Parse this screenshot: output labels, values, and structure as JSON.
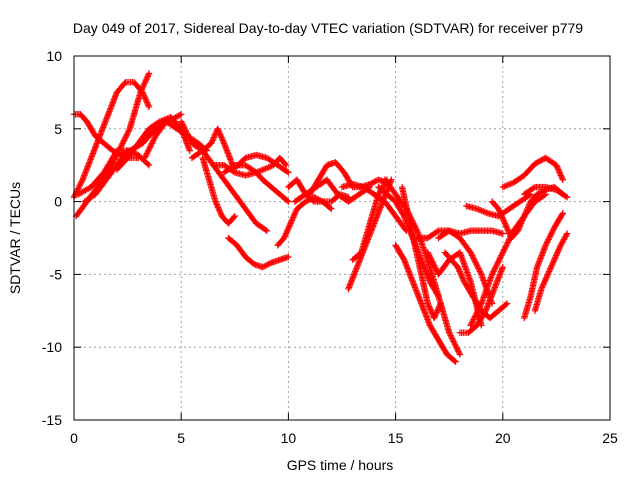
{
  "chart_data": {
    "type": "scatter",
    "title": "Day 049 of 2017, Sidereal Day-to-day VTEC variation (SDTVAR) for receiver p779",
    "xlabel": "GPS time / hours",
    "ylabel": "SDTVAR / TECUs",
    "xlim": [
      0,
      25
    ],
    "ylim": [
      -15,
      10
    ],
    "xticks": [
      0,
      5,
      10,
      15,
      20,
      25
    ],
    "yticks": [
      -15,
      -10,
      -5,
      0,
      5,
      10
    ],
    "grid": true,
    "marker": "+",
    "color": "#ff0000",
    "series": [
      {
        "x": [
          0.0,
          0.3,
          0.6,
          1.0,
          1.4,
          1.8,
          2.2,
          2.6,
          3.0
        ],
        "y": [
          6.0,
          6.0,
          5.5,
          4.5,
          4.0,
          3.5,
          3.2,
          3.0,
          3.0
        ]
      },
      {
        "x": [
          0.0,
          0.4,
          0.8,
          1.2,
          1.6,
          2.0,
          2.4,
          2.8,
          3.2,
          3.5
        ],
        "y": [
          0.3,
          1.5,
          3.0,
          4.5,
          6.0,
          7.5,
          8.2,
          8.2,
          7.5,
          6.5
        ]
      },
      {
        "x": [
          0.1,
          0.6,
          1.1,
          1.6,
          2.1,
          2.6,
          3.1,
          3.5
        ],
        "y": [
          -1.0,
          0.0,
          1.0,
          2.0,
          3.5,
          5.0,
          7.5,
          8.8
        ]
      },
      {
        "x": [
          0.5,
          1.0,
          1.5,
          2.0,
          2.5,
          3.0,
          3.5
        ],
        "y": [
          0.0,
          0.5,
          1.5,
          2.5,
          3.5,
          3.2,
          2.5
        ]
      },
      {
        "x": [
          0.2,
          0.8,
          1.4,
          2.0,
          2.6,
          3.2,
          3.8,
          4.4,
          5.0
        ],
        "y": [
          0.5,
          1.0,
          2.0,
          3.5,
          3.5,
          4.0,
          5.0,
          5.5,
          6.0
        ]
      },
      {
        "x": [
          2.0,
          2.5,
          3.0,
          3.5,
          4.0,
          4.5,
          5.0,
          5.4
        ],
        "y": [
          2.2,
          3.0,
          4.0,
          5.0,
          5.5,
          5.8,
          5.0,
          3.5
        ]
      },
      {
        "x": [
          3.3,
          3.8,
          4.3,
          4.8,
          5.3,
          5.8,
          6.2
        ],
        "y": [
          3.0,
          4.5,
          5.5,
          5.0,
          4.5,
          4.0,
          3.5
        ]
      },
      {
        "x": [
          5.0,
          5.5,
          6.0,
          6.4,
          6.7,
          7.0,
          7.4
        ],
        "y": [
          5.5,
          4.0,
          3.5,
          4.0,
          5.0,
          4.0,
          2.5
        ]
      },
      {
        "x": [
          5.5,
          6.0,
          6.5,
          7.0,
          7.5,
          8.0,
          8.5,
          9.0
        ],
        "y": [
          3.0,
          3.5,
          2.5,
          1.5,
          0.5,
          -0.5,
          -1.5,
          -2.0
        ]
      },
      {
        "x": [
          6.0,
          6.3,
          6.6,
          6.9,
          7.2,
          7.5
        ],
        "y": [
          3.0,
          1.5,
          0.0,
          -1.0,
          -1.5,
          -1.0
        ]
      },
      {
        "x": [
          6.5,
          7.0,
          7.5,
          8.0,
          8.5,
          9.0,
          9.3,
          9.6,
          9.9
        ],
        "y": [
          2.5,
          2.5,
          2.0,
          1.8,
          2.0,
          2.3,
          2.5,
          3.0,
          2.5
        ]
      },
      {
        "x": [
          7.0,
          7.5,
          8.0,
          8.5,
          8.8,
          9.2,
          9.6,
          10.0
        ],
        "y": [
          2.0,
          2.5,
          2.5,
          2.0,
          1.5,
          1.0,
          0.5,
          0.0
        ]
      },
      {
        "x": [
          7.5,
          8.0,
          8.5,
          9.0,
          9.5,
          10.0
        ],
        "y": [
          2.3,
          3.0,
          3.2,
          3.0,
          2.5,
          2.0
        ]
      },
      {
        "x": [
          7.2,
          7.6,
          8.0,
          8.4,
          8.8,
          9.2,
          9.6,
          10.0
        ],
        "y": [
          -2.5,
          -3.0,
          -3.8,
          -4.3,
          -4.5,
          -4.2,
          -4.0,
          -3.8
        ]
      },
      {
        "x": [
          9.5,
          9.8,
          10.1,
          10.4,
          10.8,
          11.2,
          11.6,
          12.0
        ],
        "y": [
          -3.0,
          -2.5,
          -1.5,
          -0.5,
          0.0,
          0.3,
          0.0,
          -0.5
        ]
      },
      {
        "x": [
          10.0,
          10.4,
          10.8,
          11.2,
          11.6,
          12.0,
          12.4,
          12.8
        ],
        "y": [
          1.0,
          1.5,
          0.5,
          0.0,
          0.0,
          0.0,
          0.5,
          0.3
        ]
      },
      {
        "x": [
          10.3,
          10.8,
          11.3,
          11.8,
          12.3,
          12.8,
          13.3,
          13.8
        ],
        "y": [
          0.0,
          0.5,
          1.0,
          1.5,
          0.5,
          0.0,
          0.5,
          1.0
        ]
      },
      {
        "x": [
          11.0,
          11.4,
          11.8,
          12.2,
          12.6,
          13.0,
          13.4,
          13.8,
          14.2,
          14.6
        ],
        "y": [
          0.5,
          1.5,
          2.5,
          2.7,
          2.0,
          1.0,
          1.0,
          1.2,
          1.5,
          1.3
        ]
      },
      {
        "x": [
          12.5,
          13.0,
          13.5,
          14.0,
          14.5,
          15.0,
          15.5
        ],
        "y": [
          1.0,
          1.2,
          1.0,
          0.5,
          0.0,
          -1.0,
          -2.0
        ]
      },
      {
        "x": [
          13.0,
          13.4,
          13.8,
          14.2,
          14.6
        ],
        "y": [
          -4.0,
          -3.5,
          -1.5,
          0.5,
          1.5
        ]
      },
      {
        "x": [
          12.8,
          13.2,
          13.6,
          14.0,
          14.4,
          14.8
        ],
        "y": [
          -6.0,
          -4.5,
          -3.0,
          -1.5,
          0.0,
          1.5
        ]
      },
      {
        "x": [
          14.2,
          14.6,
          15.0,
          15.4,
          15.8,
          16.2,
          16.6,
          17.0
        ],
        "y": [
          1.0,
          0.5,
          0.0,
          -1.0,
          -2.5,
          -4.0,
          -5.5,
          -6.5
        ]
      },
      {
        "x": [
          14.5,
          15.0,
          15.5,
          16.0,
          16.5,
          17.0,
          17.5,
          18.0
        ],
        "y": [
          1.5,
          0.5,
          -0.5,
          -2.0,
          -4.0,
          -6.5,
          -9.0,
          -10.5
        ]
      },
      {
        "x": [
          15.0,
          15.4,
          15.8,
          16.2,
          16.6,
          17.0,
          17.4,
          17.8
        ],
        "y": [
          -3.0,
          -4.0,
          -5.5,
          -7.0,
          -8.5,
          -9.5,
          -10.5,
          -11.0
        ]
      },
      {
        "x": [
          15.3,
          15.6,
          15.9,
          16.2,
          16.5,
          16.8,
          17.1
        ],
        "y": [
          1.0,
          -1.0,
          -3.0,
          -5.0,
          -7.0,
          -8.0,
          -7.0
        ]
      },
      {
        "x": [
          16.0,
          16.5,
          17.0,
          17.5,
          18.0,
          18.5,
          19.0,
          19.5,
          20.0
        ],
        "y": [
          -2.5,
          -2.5,
          -2.0,
          -2.0,
          -2.2,
          -2.0,
          -2.0,
          -2.0,
          -2.2
        ]
      },
      {
        "x": [
          16.5,
          17.0,
          17.5,
          18.0,
          18.5,
          19.0
        ],
        "y": [
          -3.5,
          -5.0,
          -4.0,
          -3.5,
          -5.5,
          -8.5
        ]
      },
      {
        "x": [
          17.0,
          17.5,
          18.0,
          18.5,
          19.0,
          19.5
        ],
        "y": [
          -2.5,
          -2.0,
          -2.5,
          -3.5,
          -5.0,
          -7.0
        ]
      },
      {
        "x": [
          17.3,
          17.6,
          17.9,
          18.2,
          18.6,
          19.0,
          19.4,
          19.8,
          20.2
        ],
        "y": [
          -3.5,
          -4.0,
          -4.5,
          -5.5,
          -6.5,
          -7.5,
          -8.0,
          -7.5,
          -7.0
        ]
      },
      {
        "x": [
          18.0,
          18.4,
          18.8,
          19.2,
          19.6,
          20.0
        ],
        "y": [
          -9.0,
          -9.0,
          -8.5,
          -7.5,
          -6.0,
          -4.5
        ]
      },
      {
        "x": [
          18.3,
          18.8,
          19.3,
          19.8,
          20.3,
          20.8,
          21.3
        ],
        "y": [
          -0.3,
          -0.5,
          -0.8,
          -1.0,
          -0.5,
          0.0,
          0.5
        ]
      },
      {
        "x": [
          18.5,
          19.0,
          19.5,
          20.0,
          20.5,
          21.0,
          21.5,
          22.0
        ],
        "y": [
          -8.5,
          -7.0,
          -5.0,
          -3.5,
          -2.0,
          -1.0,
          0.0,
          0.5
        ]
      },
      {
        "x": [
          19.5,
          19.8,
          20.1,
          20.4,
          20.7,
          21.0,
          21.3,
          21.6,
          22.0,
          22.4,
          22.8
        ],
        "y": [
          0.0,
          -0.5,
          -1.5,
          -2.5,
          -2.0,
          -1.0,
          0.0,
          0.5,
          0.8,
          1.0,
          0.5
        ]
      },
      {
        "x": [
          20.0,
          20.5,
          21.0,
          21.5,
          22.0,
          22.5,
          22.8
        ],
        "y": [
          1.0,
          1.3,
          1.8,
          2.6,
          3.0,
          2.5,
          1.5
        ]
      },
      {
        "x": [
          21.0,
          21.3,
          21.6,
          22.0,
          22.4,
          22.8
        ],
        "y": [
          -8.0,
          -6.5,
          -4.5,
          -3.0,
          -1.8,
          -0.8
        ]
      },
      {
        "x": [
          21.5,
          21.8,
          22.1,
          22.4,
          22.7,
          23.0
        ],
        "y": [
          -7.5,
          -6.0,
          -5.0,
          -4.0,
          -3.0,
          -2.2
        ]
      },
      {
        "x": [
          21.0,
          21.5,
          22.0,
          22.5,
          23.0
        ],
        "y": [
          0.5,
          1.0,
          1.0,
          0.8,
          0.3
        ]
      }
    ]
  }
}
